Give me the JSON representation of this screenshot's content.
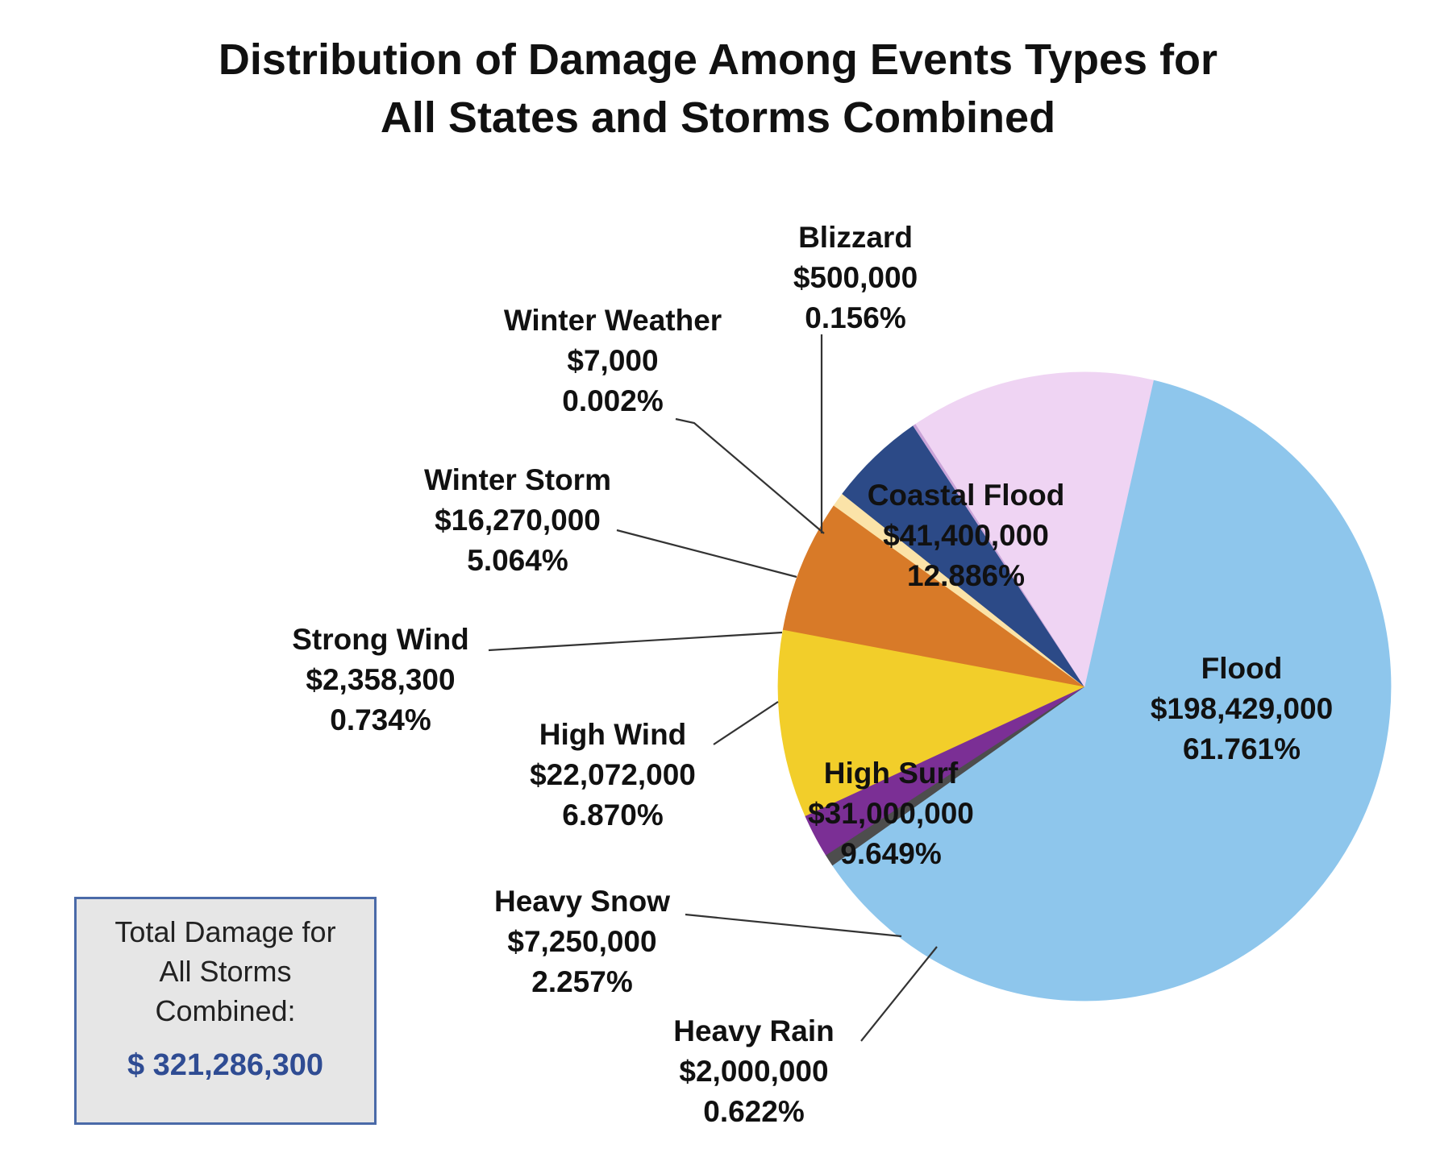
{
  "chart_data": {
    "type": "pie",
    "title_lines": [
      "Distribution of Damage Among Events Types for",
      "All States and Storms Combined"
    ],
    "slices": [
      {
        "name": "Flood",
        "value_label": "$198,429,000",
        "pct_label": "61.761%",
        "value": 198429000,
        "color": "#8ec6ec"
      },
      {
        "name": "Heavy Rain",
        "value_label": "$2,000,000",
        "pct_label": "0.622%",
        "value": 2000000,
        "color": "#4d4d4d"
      },
      {
        "name": "Heavy Snow",
        "value_label": "$7,250,000",
        "pct_label": "2.257%",
        "value": 7250000,
        "color": "#7b2f95"
      },
      {
        "name": "High Surf",
        "value_label": "$31,000,000",
        "pct_label": "9.649%",
        "value": 31000000,
        "color": "#f2ce2a"
      },
      {
        "name": "High Wind",
        "value_label": "$22,072,000",
        "pct_label": "6.870%",
        "value": 22072000,
        "color": "#d87a28"
      },
      {
        "name": "Strong Wind",
        "value_label": "$2,358,300",
        "pct_label": "0.734%",
        "value": 2358300,
        "color": "#fbe3a8"
      },
      {
        "name": "Winter Storm",
        "value_label": "$16,270,000",
        "pct_label": "5.064%",
        "value": 16270000,
        "color": "#2c4a87"
      },
      {
        "name": "Winter Weather",
        "value_label": "$7,000",
        "pct_label": "0.002%",
        "value": 7000,
        "color": "#a9c5e0"
      },
      {
        "name": "Blizzard",
        "value_label": "$500,000",
        "pct_label": "0.156%",
        "value": 500000,
        "color": "#c9a3d8"
      },
      {
        "name": "Coastal Flood",
        "value_label": "$41,400,000",
        "pct_label": "12.886%",
        "value": 41400000,
        "color": "#efd4f3"
      }
    ]
  },
  "total_box": {
    "caption_lines": [
      "Total Damage for",
      "All Storms",
      "Combined:"
    ],
    "amount": "$ 321,286,300"
  }
}
